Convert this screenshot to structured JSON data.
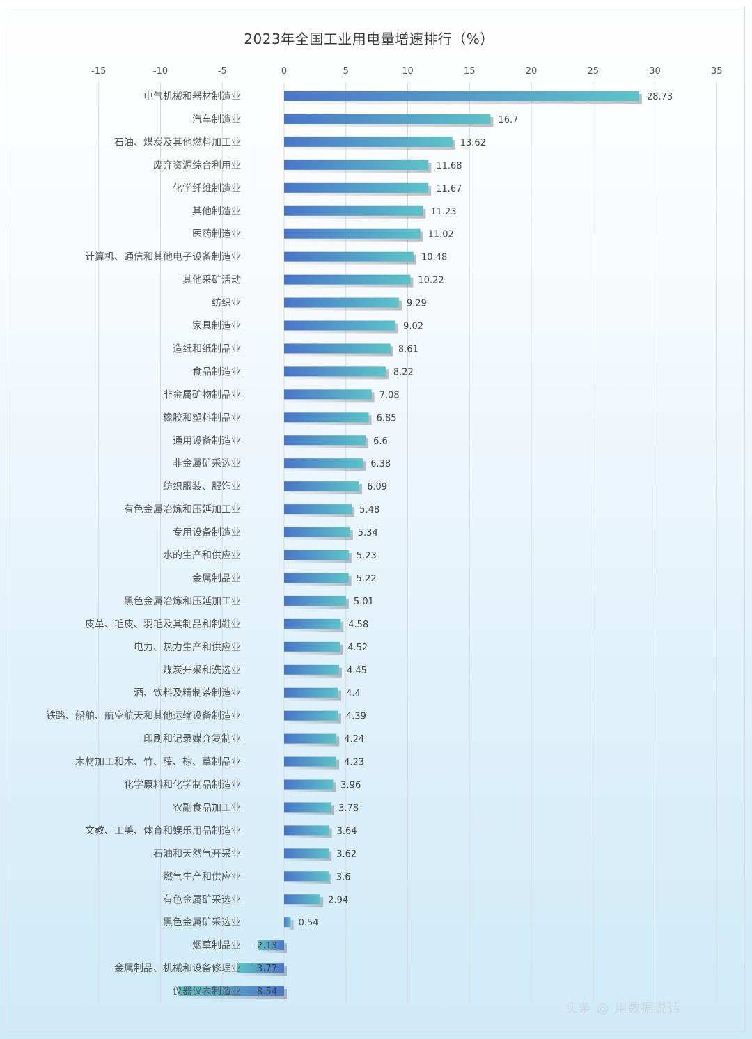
{
  "title": "2023年全国工业用电量增速排行（%）",
  "chart_data": {
    "type": "bar",
    "orientation": "horizontal",
    "title": "2023年全国工业用电量增速排行（%）",
    "xlabel": "",
    "ylabel": "",
    "xlim": [
      -15,
      35
    ],
    "x_ticks": [
      "-15",
      "-10",
      "-5",
      "0",
      "5",
      "10",
      "15",
      "20",
      "25",
      "30",
      "35"
    ],
    "grid": true,
    "categories": [
      "电气机械和器材制造业",
      "汽车制造业",
      "石油、煤炭及其他燃料加工业",
      "废弃资源综合利用业",
      "化学纤维制造业",
      "其他制造业",
      "医药制造业",
      "计算机、通信和其他电子设备制造业",
      "其他采矿活动",
      "纺织业",
      "家具制造业",
      "造纸和纸制品业",
      "食品制造业",
      "非金属矿物制品业",
      "橡胶和塑料制品业",
      "通用设备制造业",
      "非金属矿采选业",
      "纺织服装、服饰业",
      "有色金属冶炼和压延加工业",
      "专用设备制造业",
      "水的生产和供应业",
      "金属制品业",
      "黑色金属冶炼和压延加工业",
      "皮革、毛皮、羽毛及其制品和制鞋业",
      "电力、热力生产和供应业",
      "煤炭开采和洗选业",
      "酒、饮料及精制茶制造业",
      "铁路、船舶、航空航天和其他运输设备制造业",
      "印刷和记录媒介复制业",
      "木材加工和木、竹、藤、棕、草制品业",
      "化学原料和化学制品制造业",
      "农副食品加工业",
      "文教、工美、体育和娱乐用品制造业",
      "石油和天然气开采业",
      "燃气生产和供应业",
      "有色金属矿采选业",
      "黑色金属矿采选业",
      "烟草制品业",
      "金属制品、机械和设备修理业",
      "仪器仪表制造业"
    ],
    "values": [
      28.73,
      16.7,
      13.62,
      11.68,
      11.67,
      11.23,
      11.02,
      10.48,
      10.22,
      9.29,
      9.02,
      8.61,
      8.22,
      7.08,
      6.85,
      6.6,
      6.38,
      6.09,
      5.48,
      5.34,
      5.23,
      5.22,
      5.01,
      4.58,
      4.52,
      4.45,
      4.4,
      4.39,
      4.24,
      4.23,
      3.96,
      3.78,
      3.64,
      3.62,
      3.6,
      2.94,
      0.54,
      -2.13,
      -3.77,
      -8.54
    ],
    "value_labels": [
      "28.73",
      "16.7",
      "13.62",
      "11.68",
      "11.67",
      "11.23",
      "11.02",
      "10.48",
      "10.22",
      "9.29",
      "9.02",
      "8.61",
      "8.22",
      "7.08",
      "6.85",
      "6.6",
      "6.38",
      "6.09",
      "5.48",
      "5.34",
      "5.23",
      "5.22",
      "5.01",
      "4.58",
      "4.52",
      "4.45",
      "4.4",
      "4.39",
      "4.24",
      "4.23",
      "3.96",
      "3.78",
      "3.64",
      "3.62",
      "3.6",
      "2.94",
      "0.54",
      "-2.13",
      "-3.77",
      "-8.54"
    ],
    "colors": {
      "bar_start": "#4a76c9",
      "bar_end": "#5cc3c8",
      "grid": "#d6dbe0"
    }
  },
  "watermark": "头条 @ 用数据说话"
}
